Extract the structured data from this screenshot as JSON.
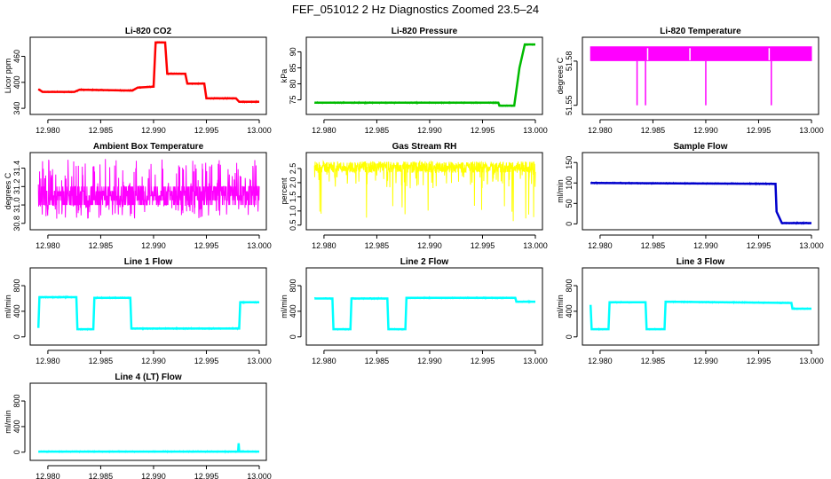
{
  "page": {
    "title": "FEF_051012  2 Hz Diagnostics Zoomed 23.5–24"
  },
  "chart_data": [
    {
      "type": "line",
      "title": "Li-820 CO2",
      "ylabel": "Licor ppm",
      "xlabel": "",
      "color": "#ff0000",
      "xlim": [
        12.979,
        13.0
      ],
      "ylim": [
        330,
        500
      ],
      "xticks": [
        "12.980",
        "12.985",
        "12.990",
        "12.995",
        "13.000"
      ],
      "yticks": [
        "340",
        "400",
        "460"
      ],
      "series": [
        {
          "x": [
            12.9791,
            12.9795,
            12.9825,
            12.983,
            12.988,
            12.9885,
            12.99,
            12.9902,
            12.9911,
            12.9913,
            12.993,
            12.9932,
            12.9948,
            12.995,
            12.9978,
            12.9981,
            13.0
          ],
          "y": [
            384,
            378,
            378,
            383,
            381,
            388,
            390,
            492,
            492,
            420,
            420,
            397,
            397,
            363,
            363,
            355,
            355
          ]
        }
      ]
    },
    {
      "type": "line",
      "title": "Li-820 Pressure",
      "ylabel": "kPa",
      "xlabel": "",
      "color": "#00bb00",
      "xlim": [
        12.979,
        13.0
      ],
      "ylim": [
        71,
        94
      ],
      "xticks": [
        "12.980",
        "12.985",
        "12.990",
        "12.995",
        "13.000"
      ],
      "yticks": [
        "75",
        "80",
        "85",
        "90"
      ],
      "series": [
        {
          "x": [
            12.9791,
            12.9965,
            12.9966,
            12.998,
            12.9985,
            12.999,
            13.0
          ],
          "y": [
            74.1,
            74.1,
            73.2,
            73.2,
            85,
            92.3,
            92.3
          ]
        }
      ]
    },
    {
      "type": "line",
      "title": "Li-820 Temperature",
      "ylabel": "degrees C",
      "xlabel": "",
      "color": "#ff00ff",
      "xlim": [
        12.979,
        13.0
      ],
      "ylim": [
        51.545,
        51.595
      ],
      "xticks": [
        "12.980",
        "12.985",
        "12.990",
        "12.995",
        "13.000"
      ],
      "yticks": [
        "51.55",
        "51.58"
      ],
      "series": [
        {
          "x": [
            12.9791,
            13.0
          ],
          "y": [
            51.58,
            51.58
          ]
        }
      ]
    },
    {
      "type": "line",
      "title": "Ambient Box Temperature",
      "ylabel": "degrees C",
      "xlabel": "",
      "color": "#ff00ff",
      "xlim": [
        12.979,
        13.0
      ],
      "ylim": [
        30.75,
        31.55
      ],
      "xticks": [
        "12.980",
        "12.985",
        "12.990",
        "12.995",
        "13.000"
      ],
      "yticks": [
        "30.8",
        "31.0",
        "31.2",
        "31.4"
      ],
      "series": [
        {
          "x": [
            12.9791,
            13.0
          ],
          "y": [
            31.1,
            31.1
          ]
        }
      ]
    },
    {
      "type": "line",
      "title": "Gas Stream RH",
      "ylabel": "percent",
      "xlabel": "",
      "color": "#ffff00",
      "xlim": [
        12.979,
        13.0
      ],
      "ylim": [
        0.4,
        3.0
      ],
      "xticks": [
        "12.980",
        "12.985",
        "12.990",
        "12.995",
        "13.000"
      ],
      "yticks": [
        "0.5",
        "1.0",
        "1.5",
        "2.0",
        "2.5"
      ],
      "series": [
        {
          "x": [
            12.9791,
            13.0
          ],
          "y": [
            2.5,
            2.5
          ]
        }
      ]
    },
    {
      "type": "line",
      "title": "Sample Flow",
      "ylabel": "ml/min",
      "xlabel": "",
      "color": "#0000cc",
      "xlim": [
        12.979,
        13.0
      ],
      "ylim": [
        -10,
        170
      ],
      "xticks": [
        "12.980",
        "12.985",
        "12.990",
        "12.995",
        "13.000"
      ],
      "yticks": [
        "0",
        "50",
        "100",
        "150"
      ],
      "series": [
        {
          "x": [
            12.9791,
            12.9966,
            12.9967,
            12.9972,
            13.0
          ],
          "y": [
            100,
            98,
            30,
            2,
            2
          ]
        }
      ]
    },
    {
      "type": "line",
      "title": "Line 1 Flow",
      "ylabel": "ml/min",
      "xlabel": "",
      "color": "#00ffff",
      "xlim": [
        12.979,
        13.0
      ],
      "ylim": [
        -100,
        1050
      ],
      "xticks": [
        "12.980",
        "12.985",
        "12.990",
        "12.995",
        "13.000"
      ],
      "yticks": [
        "0",
        "400",
        "800"
      ],
      "series": [
        {
          "x": [
            12.9791,
            12.9792,
            12.9827,
            12.9828,
            12.9843,
            12.9844,
            12.9878,
            12.9879,
            12.9981,
            12.9982,
            13.0
          ],
          "y": [
            140,
            620,
            620,
            120,
            120,
            610,
            610,
            130,
            130,
            540,
            540
          ]
        }
      ]
    },
    {
      "type": "line",
      "title": "Line 2 Flow",
      "ylabel": "ml/min",
      "xlabel": "",
      "color": "#00ffff",
      "xlim": [
        12.979,
        13.0
      ],
      "ylim": [
        -100,
        1050
      ],
      "xticks": [
        "12.980",
        "12.985",
        "12.990",
        "12.995",
        "13.000"
      ],
      "yticks": [
        "0",
        "400",
        "800"
      ],
      "series": [
        {
          "x": [
            12.9791,
            12.9808,
            12.9809,
            12.9825,
            12.9826,
            12.986,
            12.9861,
            12.9877,
            12.9878,
            12.9981,
            12.9982,
            13.0
          ],
          "y": [
            600,
            600,
            120,
            120,
            600,
            600,
            120,
            120,
            610,
            610,
            550,
            550
          ]
        }
      ]
    },
    {
      "type": "line",
      "title": "Line 3 Flow",
      "ylabel": "ml/min",
      "xlabel": "",
      "color": "#00ffff",
      "xlim": [
        12.979,
        13.0
      ],
      "ylim": [
        -100,
        1050
      ],
      "xticks": [
        "12.980",
        "12.985",
        "12.990",
        "12.995",
        "13.000"
      ],
      "yticks": [
        "0",
        "400",
        "800"
      ],
      "series": [
        {
          "x": [
            12.9791,
            12.9792,
            12.9808,
            12.9809,
            12.9843,
            12.9844,
            12.9861,
            12.9862,
            12.9981,
            12.9982,
            13.0
          ],
          "y": [
            500,
            120,
            120,
            540,
            540,
            120,
            120,
            550,
            530,
            440,
            440
          ]
        }
      ]
    },
    {
      "type": "line",
      "title": "Line 4 (LT) Flow",
      "ylabel": "ml/min",
      "xlabel": "",
      "color": "#00ffff",
      "xlim": [
        12.979,
        13.0
      ],
      "ylim": [
        -100,
        1050
      ],
      "xticks": [
        "12.980",
        "12.985",
        "12.990",
        "12.995",
        "13.000"
      ],
      "yticks": [
        "0",
        "400",
        "800"
      ],
      "series": [
        {
          "x": [
            12.9791,
            12.998,
            12.99805,
            12.9981,
            12.99815,
            13.0
          ],
          "y": [
            10,
            10,
            140,
            20,
            10,
            10
          ]
        }
      ]
    }
  ]
}
